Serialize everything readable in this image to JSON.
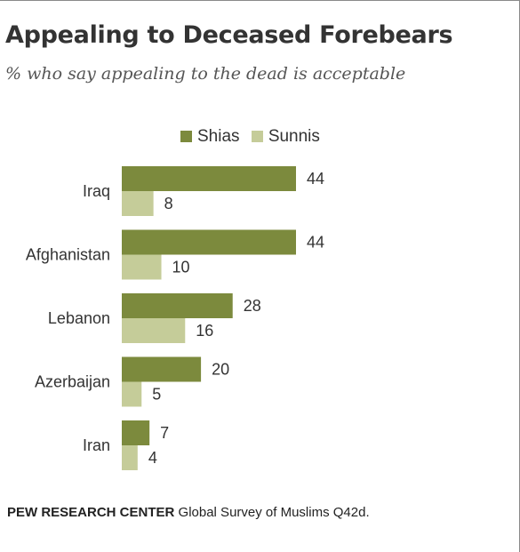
{
  "title": "Appealing to Deceased Forebears",
  "subtitle": "% who say appealing to the dead is acceptable",
  "footer": {
    "org": "PEW RESEARCH CENTER",
    "source": "Global Survey of Muslims Q42d."
  },
  "colors": {
    "shias": "#7c8a3d",
    "sunnis": "#c5cc99",
    "text": "#333333"
  },
  "chart_data": {
    "type": "bar",
    "orientation": "horizontal",
    "categories": [
      "Iraq",
      "Afghanistan",
      "Lebanon",
      "Azerbaijan",
      "Iran"
    ],
    "series": [
      {
        "name": "Shias",
        "values": [
          44,
          44,
          28,
          20,
          7
        ]
      },
      {
        "name": "Sunnis",
        "values": [
          8,
          10,
          16,
          5,
          4
        ]
      }
    ],
    "xlim": [
      0,
      44
    ],
    "legend": "top",
    "grid": false,
    "data_labels": true
  }
}
